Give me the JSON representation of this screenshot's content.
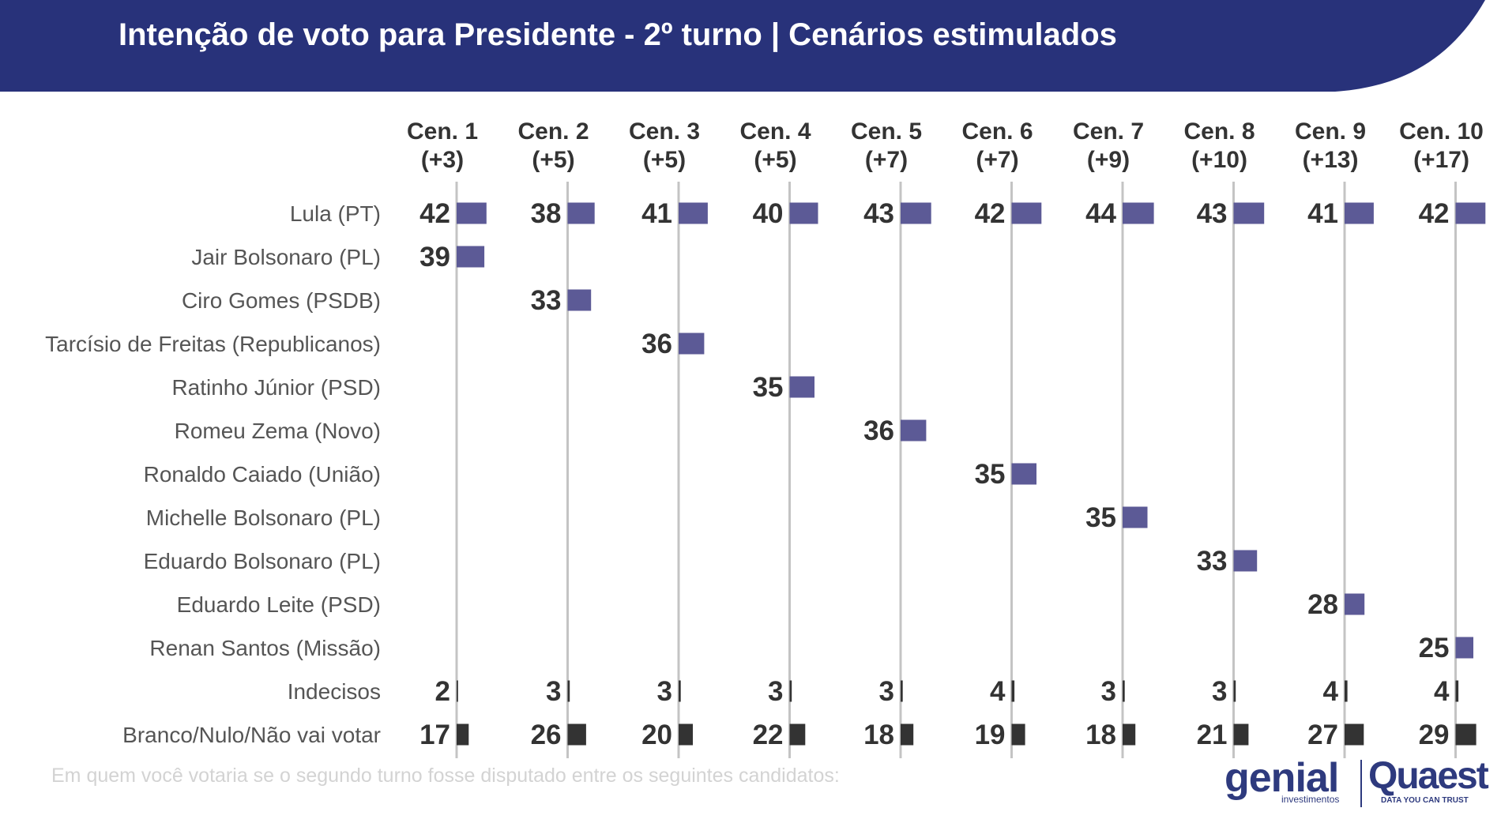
{
  "header": {
    "title": "Intenção de voto para Presidente - 2º turno | Cenários estimulados",
    "color": "#28327a"
  },
  "chart_data": {
    "type": "bar",
    "title": "Intenção de voto para Presidente - 2º turno | Cenários estimulados",
    "scenarios": [
      {
        "label": "Cen. 1",
        "margin": "(+3)"
      },
      {
        "label": "Cen. 2",
        "margin": "(+5)"
      },
      {
        "label": "Cen. 3",
        "margin": "(+5)"
      },
      {
        "label": "Cen. 4",
        "margin": "(+5)"
      },
      {
        "label": "Cen. 5",
        "margin": "(+7)"
      },
      {
        "label": "Cen. 6",
        "margin": "(+7)"
      },
      {
        "label": "Cen. 7",
        "margin": "(+9)"
      },
      {
        "label": "Cen. 8",
        "margin": "(+10)"
      },
      {
        "label": "Cen. 9",
        "margin": "(+13)"
      },
      {
        "label": "Cen. 10",
        "margin": "(+17)"
      }
    ],
    "rows": [
      {
        "label": "Lula (PT)",
        "kind": "candidate",
        "values": [
          42,
          38,
          41,
          40,
          43,
          42,
          44,
          43,
          41,
          42
        ]
      },
      {
        "label": "Jair Bolsonaro (PL)",
        "kind": "candidate",
        "values": [
          39,
          null,
          null,
          null,
          null,
          null,
          null,
          null,
          null,
          null
        ]
      },
      {
        "label": "Ciro Gomes (PSDB)",
        "kind": "candidate",
        "values": [
          null,
          33,
          null,
          null,
          null,
          null,
          null,
          null,
          null,
          null
        ]
      },
      {
        "label": "Tarcísio de Freitas (Republicanos)",
        "kind": "candidate",
        "values": [
          null,
          null,
          36,
          null,
          null,
          null,
          null,
          null,
          null,
          null
        ]
      },
      {
        "label": "Ratinho Júnior (PSD)",
        "kind": "candidate",
        "values": [
          null,
          null,
          null,
          35,
          null,
          null,
          null,
          null,
          null,
          null
        ]
      },
      {
        "label": "Romeu Zema (Novo)",
        "kind": "candidate",
        "values": [
          null,
          null,
          null,
          null,
          36,
          null,
          null,
          null,
          null,
          null
        ]
      },
      {
        "label": "Ronaldo Caiado (União)",
        "kind": "candidate",
        "values": [
          null,
          null,
          null,
          null,
          null,
          35,
          null,
          null,
          null,
          null
        ]
      },
      {
        "label": "Michelle Bolsonaro (PL)",
        "kind": "candidate",
        "values": [
          null,
          null,
          null,
          null,
          null,
          null,
          35,
          null,
          null,
          null
        ]
      },
      {
        "label": "Eduardo Bolsonaro (PL)",
        "kind": "candidate",
        "values": [
          null,
          null,
          null,
          null,
          null,
          null,
          null,
          33,
          null,
          null
        ]
      },
      {
        "label": "Eduardo Leite (PSD)",
        "kind": "candidate",
        "values": [
          null,
          null,
          null,
          null,
          null,
          null,
          null,
          null,
          28,
          null
        ]
      },
      {
        "label": "Renan Santos (Missão)",
        "kind": "candidate",
        "values": [
          null,
          null,
          null,
          null,
          null,
          null,
          null,
          null,
          null,
          25
        ]
      },
      {
        "label": "Indecisos",
        "kind": "other",
        "values": [
          2,
          3,
          3,
          3,
          3,
          4,
          3,
          3,
          4,
          4
        ]
      },
      {
        "label": "Branco/Nulo/Não vai votar",
        "kind": "other",
        "values": [
          17,
          26,
          20,
          22,
          18,
          19,
          18,
          21,
          27,
          29
        ]
      }
    ],
    "colors": {
      "candidate": "#5c5a96",
      "other": "#333333",
      "axis": "#c4c4c4"
    }
  },
  "footer": {
    "note": "Em quem você votaria se o segundo turno fosse disputado entre os seguintes candidatos:",
    "logo_genial": "genial",
    "logo_genial_sub": "investimentos",
    "logo_quaest": "Quaest",
    "logo_quaest_sub": "DATA YOU CAN TRUST"
  }
}
